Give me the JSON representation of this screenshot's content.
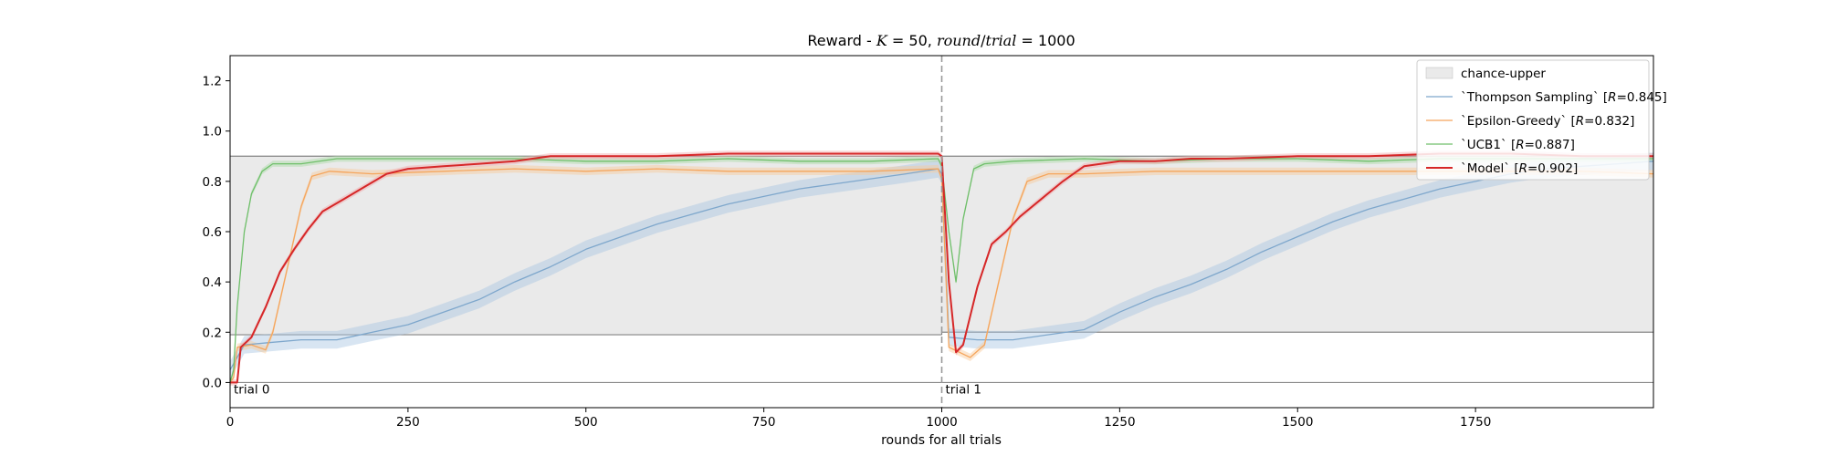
{
  "chart_data": {
    "type": "line",
    "title": {
      "prefix": "Reward - ",
      "k_text": "K",
      "k_rest": " = 50, ",
      "round_text": "round",
      "slash": "/",
      "trial_text": "trial",
      "trial_rest": " = 1000"
    },
    "xlabel": "rounds for all trials",
    "ylabel": "",
    "xlim": [
      0,
      2000
    ],
    "ylim": [
      -0.1,
      1.3
    ],
    "x_ticks": [
      0,
      250,
      500,
      750,
      1000,
      1250,
      1500,
      1750
    ],
    "y_ticks": [
      0.0,
      0.2,
      0.4,
      0.6,
      0.8,
      1.0,
      1.2
    ],
    "y_tick_labels": [
      "0.0",
      "0.2",
      "0.4",
      "0.6",
      "0.8",
      "1.0",
      "1.2"
    ],
    "grid": false,
    "legend_position": "top-right",
    "trial_boundary": 1000,
    "annotations": [
      {
        "text": "trial 0",
        "x": 0,
        "y": 0.0
      },
      {
        "text": "trial 1",
        "x": 1000,
        "y": 0.0
      }
    ],
    "chance_band": {
      "name": "chance-upper",
      "color": "#d9d9d9",
      "segments": [
        {
          "x": [
            0,
            1000
          ],
          "lower": 0.19,
          "upper": 0.9
        },
        {
          "x": [
            1000,
            2000
          ],
          "lower": 0.2,
          "upper": 0.9
        }
      ]
    },
    "zero_line": 0.0,
    "series": [
      {
        "name": "`Thompson Sampling`",
        "reward_label": "R",
        "reward_value": "=0.845",
        "color": "#7ea7cc",
        "band_color": "#a9c6e3",
        "linewidth": 1.3,
        "band": 0.035,
        "points": [
          [
            0,
            0.05
          ],
          [
            20,
            0.15
          ],
          [
            60,
            0.16
          ],
          [
            100,
            0.17
          ],
          [
            150,
            0.17
          ],
          [
            200,
            0.2
          ],
          [
            250,
            0.23
          ],
          [
            300,
            0.28
          ],
          [
            350,
            0.33
          ],
          [
            400,
            0.4
          ],
          [
            450,
            0.46
          ],
          [
            500,
            0.53
          ],
          [
            550,
            0.58
          ],
          [
            600,
            0.63
          ],
          [
            650,
            0.67
          ],
          [
            700,
            0.71
          ],
          [
            750,
            0.74
          ],
          [
            800,
            0.77
          ],
          [
            850,
            0.79
          ],
          [
            900,
            0.81
          ],
          [
            950,
            0.83
          ],
          [
            995,
            0.85
          ],
          [
            1000,
            0.83
          ],
          [
            1010,
            0.18
          ],
          [
            1050,
            0.17
          ],
          [
            1100,
            0.17
          ],
          [
            1150,
            0.19
          ],
          [
            1200,
            0.21
          ],
          [
            1250,
            0.28
          ],
          [
            1300,
            0.34
          ],
          [
            1350,
            0.39
          ],
          [
            1400,
            0.45
          ],
          [
            1450,
            0.52
          ],
          [
            1500,
            0.58
          ],
          [
            1550,
            0.64
          ],
          [
            1600,
            0.69
          ],
          [
            1650,
            0.73
          ],
          [
            1700,
            0.77
          ],
          [
            1750,
            0.8
          ],
          [
            1800,
            0.83
          ],
          [
            1850,
            0.85
          ],
          [
            1900,
            0.86
          ],
          [
            1950,
            0.87
          ],
          [
            2000,
            0.88
          ]
        ]
      },
      {
        "name": "`Epsilon-Greedy`",
        "reward_label": "R",
        "reward_value": "=0.832",
        "color": "#f5a55c",
        "band_color": "#f8c99a",
        "linewidth": 1.3,
        "band": 0.015,
        "points": [
          [
            0,
            0.0
          ],
          [
            5,
            0.02
          ],
          [
            10,
            0.14
          ],
          [
            30,
            0.15
          ],
          [
            50,
            0.13
          ],
          [
            60,
            0.2
          ],
          [
            80,
            0.45
          ],
          [
            100,
            0.7
          ],
          [
            115,
            0.82
          ],
          [
            140,
            0.84
          ],
          [
            200,
            0.83
          ],
          [
            300,
            0.84
          ],
          [
            400,
            0.85
          ],
          [
            500,
            0.84
          ],
          [
            600,
            0.85
          ],
          [
            700,
            0.84
          ],
          [
            800,
            0.84
          ],
          [
            900,
            0.84
          ],
          [
            995,
            0.85
          ],
          [
            1000,
            0.81
          ],
          [
            1010,
            0.14
          ],
          [
            1040,
            0.1
          ],
          [
            1060,
            0.15
          ],
          [
            1080,
            0.4
          ],
          [
            1100,
            0.65
          ],
          [
            1120,
            0.8
          ],
          [
            1150,
            0.83
          ],
          [
            1200,
            0.83
          ],
          [
            1300,
            0.84
          ],
          [
            1400,
            0.84
          ],
          [
            1500,
            0.84
          ],
          [
            1600,
            0.84
          ],
          [
            1700,
            0.84
          ],
          [
            1800,
            0.84
          ],
          [
            1900,
            0.84
          ],
          [
            2000,
            0.83
          ]
        ]
      },
      {
        "name": "`UCB1`",
        "reward_label": "R",
        "reward_value": "=0.887",
        "color": "#6fbf6a",
        "band_color": "#a8dca4",
        "linewidth": 1.3,
        "band": 0.012,
        "points": [
          [
            0,
            0.0
          ],
          [
            5,
            0.05
          ],
          [
            10,
            0.3
          ],
          [
            20,
            0.6
          ],
          [
            30,
            0.75
          ],
          [
            45,
            0.84
          ],
          [
            60,
            0.87
          ],
          [
            100,
            0.87
          ],
          [
            150,
            0.89
          ],
          [
            200,
            0.89
          ],
          [
            300,
            0.89
          ],
          [
            400,
            0.89
          ],
          [
            500,
            0.88
          ],
          [
            600,
            0.88
          ],
          [
            700,
            0.89
          ],
          [
            800,
            0.88
          ],
          [
            900,
            0.88
          ],
          [
            995,
            0.89
          ],
          [
            1000,
            0.86
          ],
          [
            1010,
            0.6
          ],
          [
            1020,
            0.4
          ],
          [
            1030,
            0.65
          ],
          [
            1045,
            0.85
          ],
          [
            1060,
            0.87
          ],
          [
            1100,
            0.88
          ],
          [
            1200,
            0.89
          ],
          [
            1300,
            0.88
          ],
          [
            1400,
            0.89
          ],
          [
            1500,
            0.89
          ],
          [
            1600,
            0.88
          ],
          [
            1700,
            0.89
          ],
          [
            1800,
            0.89
          ],
          [
            1900,
            0.89
          ],
          [
            2000,
            0.89
          ]
        ]
      },
      {
        "name": "`Model`",
        "reward_label": "R",
        "reward_value": "=0.902",
        "color": "#d62728",
        "band_color": "#f2a9aa",
        "linewidth": 2.0,
        "band": 0.012,
        "points": [
          [
            0,
            0.0
          ],
          [
            10,
            0.0
          ],
          [
            15,
            0.14
          ],
          [
            30,
            0.18
          ],
          [
            50,
            0.3
          ],
          [
            70,
            0.44
          ],
          [
            90,
            0.53
          ],
          [
            110,
            0.61
          ],
          [
            130,
            0.68
          ],
          [
            160,
            0.73
          ],
          [
            190,
            0.78
          ],
          [
            220,
            0.83
          ],
          [
            250,
            0.85
          ],
          [
            300,
            0.86
          ],
          [
            350,
            0.87
          ],
          [
            400,
            0.88
          ],
          [
            450,
            0.9
          ],
          [
            500,
            0.9
          ],
          [
            600,
            0.9
          ],
          [
            700,
            0.91
          ],
          [
            800,
            0.91
          ],
          [
            900,
            0.91
          ],
          [
            995,
            0.91
          ],
          [
            1000,
            0.9
          ],
          [
            1010,
            0.4
          ],
          [
            1020,
            0.12
          ],
          [
            1030,
            0.15
          ],
          [
            1050,
            0.38
          ],
          [
            1070,
            0.55
          ],
          [
            1090,
            0.6
          ],
          [
            1110,
            0.66
          ],
          [
            1140,
            0.73
          ],
          [
            1170,
            0.8
          ],
          [
            1200,
            0.86
          ],
          [
            1250,
            0.88
          ],
          [
            1300,
            0.88
          ],
          [
            1350,
            0.89
          ],
          [
            1400,
            0.89
          ],
          [
            1500,
            0.9
          ],
          [
            1600,
            0.9
          ],
          [
            1700,
            0.91
          ],
          [
            1800,
            0.91
          ],
          [
            1900,
            0.9
          ],
          [
            2000,
            0.9
          ]
        ]
      }
    ]
  }
}
